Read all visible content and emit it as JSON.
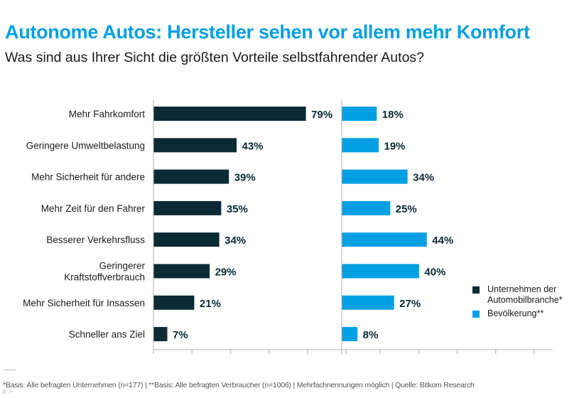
{
  "title": "Autonome Autos: Hersteller sehen vor allem mehr Komfort",
  "subtitle": "Was sind aus Ihrer Sicht die größten Vorteile selbstfahrender Autos?",
  "footnote": "*Basis: Alle befragten Unternehmen (n=177) | **Basis: Alle befragten Verbraucher (n=1006) | Mehrfachnennungen möglich | Quelle: Bitkom Research",
  "colors": {
    "title": "#009fe3",
    "industry": "#0b2a33",
    "population": "#009fe3",
    "axis": "#b0b0b0"
  },
  "chart_data": {
    "type": "bar",
    "orientation": "horizontal",
    "title": "Autonome Autos: Hersteller sehen vor allem mehr Komfort",
    "subtitle": "Was sind aus Ihrer Sicht die größten Vorteile selbstfahrender Autos?",
    "categories": [
      "Mehr Fahrkomfort",
      "Geringere Umweltbelastung",
      "Mehr Sicherheit für andere",
      "Mehr Zeit für den Fahrer",
      "Besserer Verkehrsfluss",
      "Geringerer\nKraftstoffverbrauch",
      "Mehr Sicherheit für Insassen",
      "Schneller ans Ziel"
    ],
    "series": [
      {
        "name": "Unternehmen der\nAutomobilbranche*",
        "values": [
          79,
          43,
          39,
          35,
          34,
          29,
          21,
          7
        ],
        "unit": "%"
      },
      {
        "name": "Bevölkerung**",
        "values": [
          18,
          19,
          34,
          25,
          44,
          40,
          27,
          8
        ],
        "unit": "%"
      }
    ],
    "xlim": [
      0,
      100
    ],
    "tick_step": 20,
    "panels": "two side-by-side panels, one per series",
    "data_labels": true,
    "grid": false,
    "legend": "bottom-right"
  }
}
